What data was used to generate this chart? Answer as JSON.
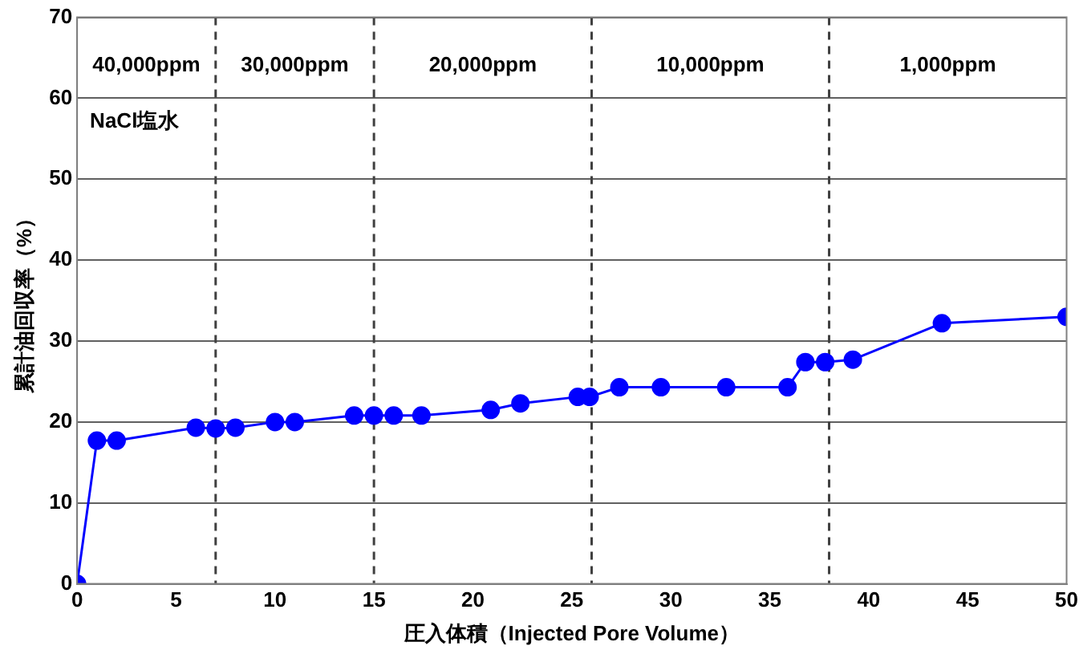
{
  "chart_data": {
    "type": "line",
    "xlabel": "圧入体積（Injected Pore Volume）",
    "ylabel": "累計油回収率（%）",
    "x": [
      0,
      1,
      2,
      6,
      7,
      8,
      10,
      11,
      14,
      15,
      16,
      17.4,
      20.9,
      22.4,
      25.3,
      25.9,
      27.4,
      29.5,
      32.8,
      35.9,
      36.8,
      37.8,
      39.2,
      43.7,
      50
    ],
    "series": [
      {
        "color": "#0000ff",
        "values": [
          0,
          17.7,
          17.7,
          19.3,
          19.2,
          19.3,
          20,
          20,
          20.8,
          20.8,
          20.8,
          20.8,
          21.5,
          22.3,
          23.1,
          23.1,
          24.3,
          24.3,
          24.3,
          24.3,
          27.4,
          27.4,
          27.7,
          32.2,
          33
        ]
      }
    ],
    "xlim": [
      0,
      50
    ],
    "xticks": [
      0,
      5,
      10,
      15,
      20,
      25,
      30,
      35,
      40,
      45,
      50
    ],
    "ylim": [
      0,
      70
    ],
    "yticks": [
      0,
      10,
      20,
      30,
      40,
      50,
      60,
      70
    ],
    "grid": "y",
    "marker": "circle",
    "line_style": "solid",
    "legend": false,
    "ref_lines": [
      {
        "axis": "x",
        "value": 7,
        "line_style": "dashed",
        "color": "#404040"
      },
      {
        "axis": "x",
        "value": 15,
        "line_style": "dashed",
        "color": "#404040"
      },
      {
        "axis": "x",
        "value": 26,
        "line_style": "dashed",
        "color": "#404040"
      },
      {
        "axis": "x",
        "value": 38,
        "line_style": "dashed",
        "color": "#404040"
      }
    ],
    "annotations": [
      "40,000ppm",
      "30,000ppm",
      "20,000ppm",
      "10,000ppm",
      "1,000ppm",
      "NaCl塩水"
    ]
  }
}
